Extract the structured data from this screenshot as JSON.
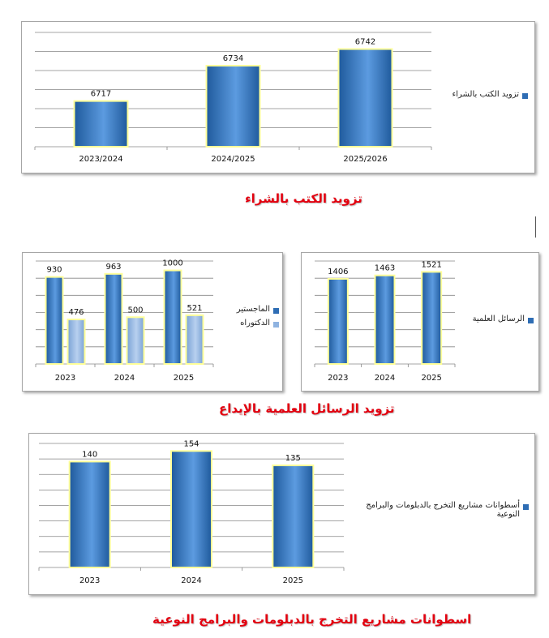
{
  "colors": {
    "bar_dark": "#2e6db4",
    "bar_light": "#8fb3e0",
    "bar_outline": "#ffff99",
    "title": "#e3000f",
    "gridline": "#868686"
  },
  "chart_data": [
    {
      "id": "books",
      "type": "bar",
      "title": "تزويد الكتب بالشراء",
      "categories": [
        "2023/2024",
        "2024/2025",
        "2025/2026"
      ],
      "series": [
        {
          "name": "تزويد الكتب بالشراء",
          "values": [
            6717,
            6734,
            6742
          ]
        }
      ],
      "grid": true,
      "legend": "right"
    },
    {
      "id": "masters-phd",
      "type": "bar",
      "categories": [
        "2023",
        "2024",
        "2025"
      ],
      "series": [
        {
          "name": "الماجستير",
          "values": [
            930,
            963,
            1000
          ]
        },
        {
          "name": "الدكتوراه",
          "values": [
            476,
            500,
            521
          ]
        }
      ],
      "ylim": [
        0,
        1100
      ],
      "grid": true,
      "legend": "right"
    },
    {
      "id": "theses",
      "type": "bar",
      "categories": [
        "2023",
        "2024",
        "2025"
      ],
      "series": [
        {
          "name": "الرسائل العلمية",
          "values": [
            1406,
            1463,
            1521
          ]
        }
      ],
      "grid": true,
      "legend": "right"
    },
    {
      "id": "cds",
      "type": "bar",
      "title": "اسطوانات مشاريع التخرج بالدبلومات والبرامج النوعية",
      "categories": [
        "2023",
        "2024",
        "2025"
      ],
      "series": [
        {
          "name": "أسطوانات مشاريع التخرج بالدبلومات والبرامج النوعية",
          "values": [
            140,
            154,
            135
          ]
        }
      ],
      "grid": true,
      "legend": "right"
    }
  ],
  "section_title_theses": "تزويد الرسائل العلمية بالإيداع"
}
